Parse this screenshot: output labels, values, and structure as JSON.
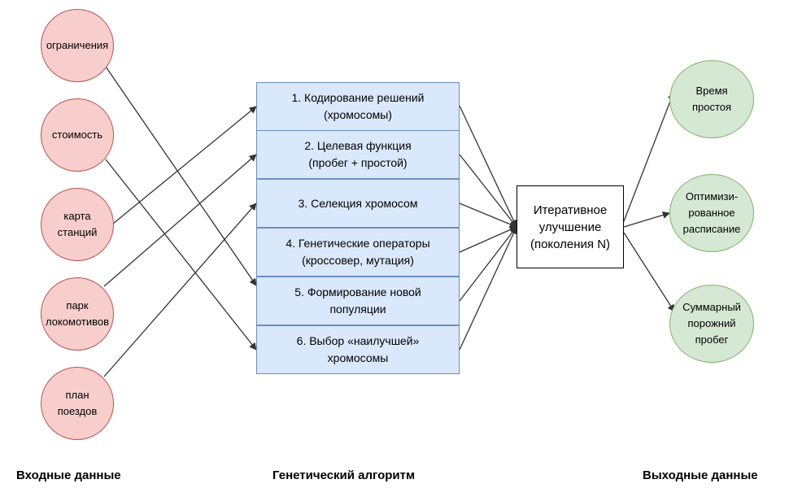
{
  "inputs": [
    {
      "id": "constraints",
      "label": "ограничения"
    },
    {
      "id": "cost",
      "label": "стоимость"
    },
    {
      "id": "station-map",
      "label": "карта\nстанций"
    },
    {
      "id": "locomotive-fleet",
      "label": "парк\nлокомотивов"
    },
    {
      "id": "train-plan",
      "label": "план\nпоездов"
    }
  ],
  "algorithm_steps": [
    {
      "id": "step-1",
      "label": "1. Кодирование решений\n(хромосомы)"
    },
    {
      "id": "step-2",
      "label": "2. Целевая функция\n(пробег + простой)"
    },
    {
      "id": "step-3",
      "label": "3. Селекция хромосом"
    },
    {
      "id": "step-4",
      "label": "4. Генетические операторы\n(кроссовер, мутация)"
    },
    {
      "id": "step-5",
      "label": "5. Формирование новой\nпопуляции"
    },
    {
      "id": "step-6",
      "label": "6. Выбор «наилучшей»\nхромосомы"
    }
  ],
  "iteration": {
    "label": "Итеративное\nулучшение\n(поколения N)"
  },
  "outputs": [
    {
      "id": "idle-time",
      "label": "Время\nпростоя"
    },
    {
      "id": "optimized-schedule",
      "label": "Оптимизи-\nрованное\nрасписание"
    },
    {
      "id": "empty-run",
      "label": "Суммарный\nпорожний\nпробег"
    }
  ],
  "captions": {
    "inputs": "Входные данные",
    "algorithm": "Генетический алгоритм",
    "outputs": "Выходные данные"
  },
  "edges": [
    [
      "constraints",
      "step-5"
    ],
    [
      "cost",
      "step-6"
    ],
    [
      "station-map",
      "step-1"
    ],
    [
      "locomotive-fleet",
      "step-2"
    ],
    [
      "train-plan",
      "step-3"
    ],
    [
      "step-1",
      "iteration"
    ],
    [
      "step-2",
      "iteration"
    ],
    [
      "step-3",
      "iteration"
    ],
    [
      "step-4",
      "iteration"
    ],
    [
      "step-5",
      "iteration"
    ],
    [
      "step-6",
      "iteration"
    ],
    [
      "iteration",
      "idle-time"
    ],
    [
      "iteration",
      "optimized-schedule"
    ],
    [
      "iteration",
      "empty-run"
    ]
  ],
  "colors": {
    "input_fill": "#f8cecc",
    "input_stroke": "#b85450",
    "step_fill": "#dae8fc",
    "step_stroke": "#6c8ebf",
    "output_fill": "#d5e8d4",
    "output_stroke": "#82b366",
    "edge": "#333333"
  }
}
